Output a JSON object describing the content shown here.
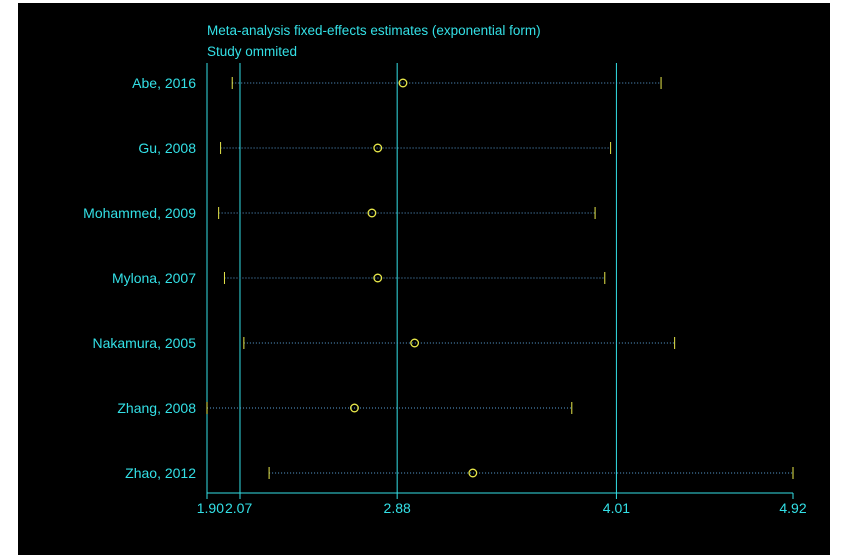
{
  "chart_data": {
    "type": "forest",
    "title": "Meta-analysis fixed-effects estimates (exponential form)",
    "subtitle": "Study ommited",
    "xticks": [
      {
        "value": 1.9,
        "label": "1.90"
      },
      {
        "value": 2.07,
        "label": "2.07"
      },
      {
        "value": 2.88,
        "label": "2.88"
      },
      {
        "value": 4.01,
        "label": "4.01"
      },
      {
        "value": 4.92,
        "label": "4.92"
      }
    ],
    "xlim": [
      1.9,
      4.92
    ],
    "reference_lines": [
      2.07,
      2.88,
      4.01
    ],
    "studies": [
      {
        "name": "Abe, 2016",
        "estimate": 2.91,
        "lower": 2.03,
        "upper": 4.24
      },
      {
        "name": "Gu, 2008",
        "estimate": 2.78,
        "lower": 1.97,
        "upper": 3.98
      },
      {
        "name": "Mohammed, 2009",
        "estimate": 2.75,
        "lower": 1.96,
        "upper": 3.9
      },
      {
        "name": "Mylona, 2007",
        "estimate": 2.78,
        "lower": 1.99,
        "upper": 3.95
      },
      {
        "name": "Nakamura, 2005",
        "estimate": 2.97,
        "lower": 2.09,
        "upper": 4.31
      },
      {
        "name": "Zhang, 2008",
        "estimate": 2.66,
        "lower": 1.9,
        "upper": 3.78
      },
      {
        "name": "Zhao, 2012",
        "estimate": 3.27,
        "lower": 2.22,
        "upper": 4.92
      }
    ]
  },
  "colors": {
    "background": "#000000",
    "axis": "#33e0e6",
    "text": "#33e0e6",
    "ci_line": "#5aa0d8",
    "marker": "#e8e84a"
  }
}
